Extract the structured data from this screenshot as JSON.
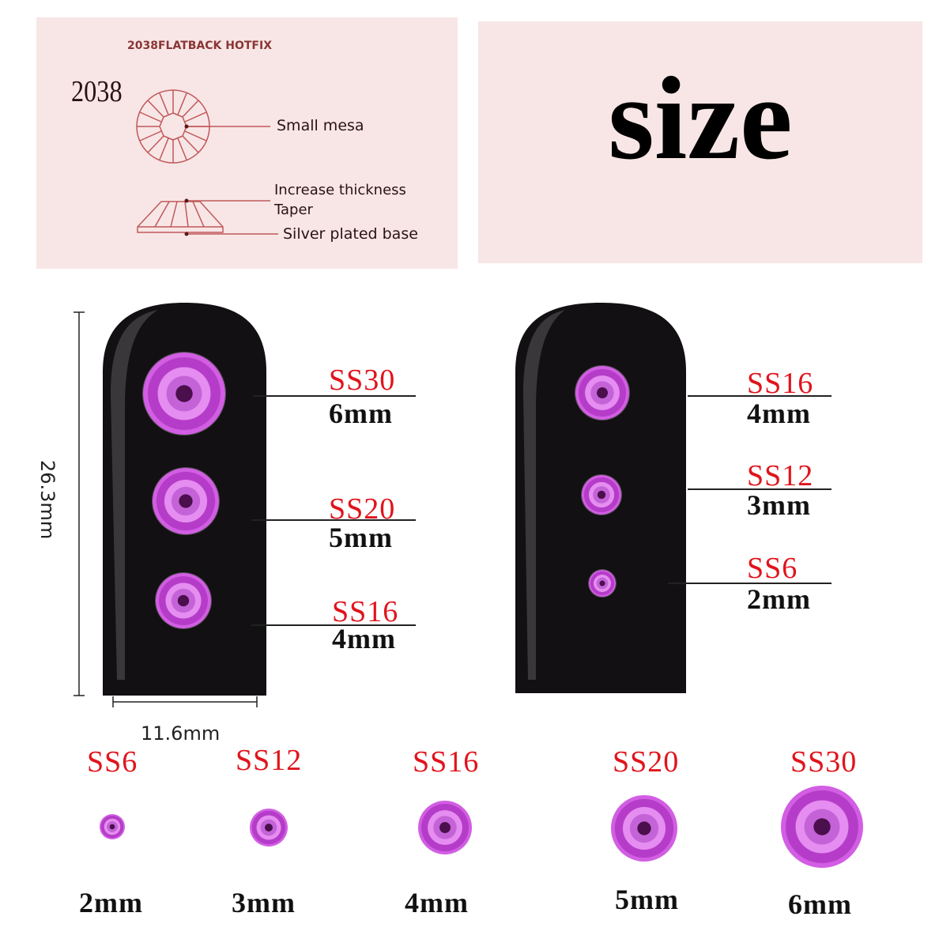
{
  "diagram_panel": {
    "heading": "2038FLATBACK HOTFIX",
    "model": "2038",
    "callouts": [
      "Small mesa",
      "Increase thickness",
      "Taper",
      "Silver plated base"
    ]
  },
  "title_panel": {
    "title": "size"
  },
  "dimensions": {
    "height": "26.3mm",
    "width": "11.6mm"
  },
  "left_nail": [
    {
      "code": "SS30",
      "size": "6mm"
    },
    {
      "code": "SS20",
      "size": "5mm"
    },
    {
      "code": "SS16",
      "size": "4mm"
    }
  ],
  "right_nail": [
    {
      "code": "SS16",
      "size": "4mm"
    },
    {
      "code": "SS12",
      "size": "3mm"
    },
    {
      "code": "SS6",
      "size": "2mm"
    }
  ],
  "bottom_row": [
    {
      "code": "SS6",
      "size": "2mm"
    },
    {
      "code": "SS12",
      "size": "3mm"
    },
    {
      "code": "SS16",
      "size": "4mm"
    },
    {
      "code": "SS20",
      "size": "5mm"
    },
    {
      "code": "SS30",
      "size": "6mm"
    }
  ],
  "colors": {
    "panel": "#f8e6e6",
    "diagram_line": "#c0585a",
    "label_red": "#e0141c",
    "gem": "#c050d8",
    "nail": "#111111"
  }
}
